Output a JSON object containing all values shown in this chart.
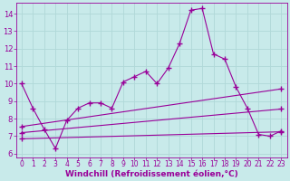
{
  "background_color": "#c8eaea",
  "grid_color": "#b0d8d8",
  "line_color": "#990099",
  "marker": "+",
  "marker_size": 4,
  "marker_lw": 1.0,
  "xlabel": "Windchill (Refroidissement éolien,°C)",
  "xlabel_fontsize": 6.5,
  "xlabel_bold": true,
  "xtick_fontsize": 5.5,
  "ytick_fontsize": 6.0,
  "xlim": [
    -0.5,
    23.5
  ],
  "ylim": [
    5.8,
    14.6
  ],
  "yticks": [
    6,
    7,
    8,
    9,
    10,
    11,
    12,
    13,
    14
  ],
  "xticks": [
    0,
    1,
    2,
    3,
    4,
    5,
    6,
    7,
    8,
    9,
    10,
    11,
    12,
    13,
    14,
    15,
    16,
    17,
    18,
    19,
    20,
    21,
    22,
    23
  ],
  "main_line": [
    10.0,
    8.6,
    7.4,
    6.3,
    7.9,
    8.6,
    8.9,
    8.9,
    8.6,
    10.1,
    10.4,
    10.7,
    10.0,
    10.9,
    12.3,
    14.2,
    14.3,
    11.7,
    11.4,
    9.8,
    8.6,
    7.1,
    7.0,
    7.3
  ],
  "line1": {
    "x": [
      0,
      23
    ],
    "y": [
      7.55,
      9.7
    ]
  },
  "line2": {
    "x": [
      0,
      23
    ],
    "y": [
      7.2,
      8.55
    ]
  },
  "line3": {
    "x": [
      0,
      23
    ],
    "y": [
      6.85,
      7.25
    ]
  }
}
